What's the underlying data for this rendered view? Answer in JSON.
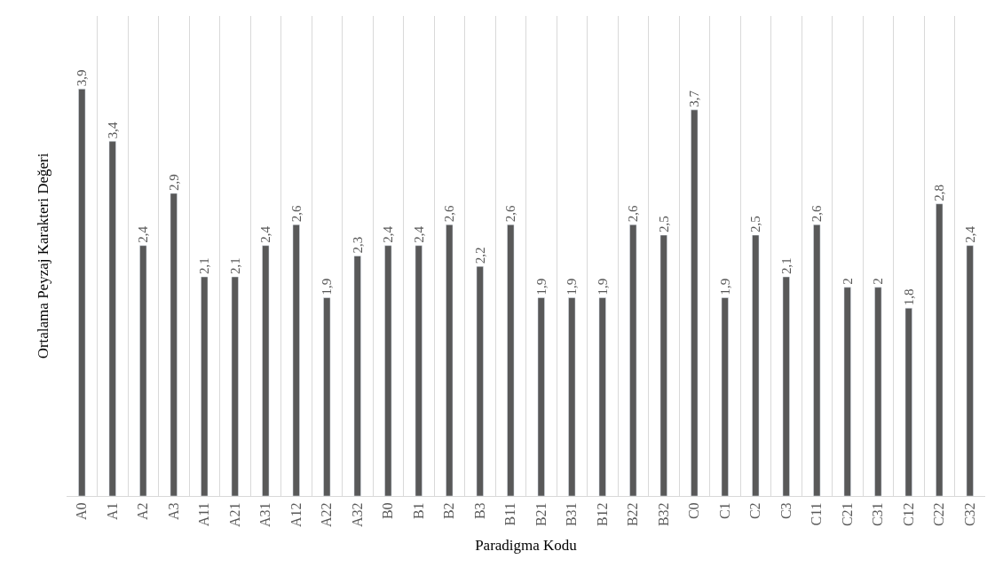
{
  "chart_data": {
    "type": "bar",
    "xlabel": "Paradigma Kodu",
    "ylabel": "Ortalama Peyzaj Karakteri Değeri",
    "categories": [
      "A0",
      "A1",
      "A2",
      "A3",
      "A11",
      "A21",
      "A31",
      "A12",
      "A22",
      "A32",
      "B0",
      "B1",
      "B2",
      "B3",
      "B11",
      "B21",
      "B31",
      "B12",
      "B22",
      "B32",
      "C0",
      "C1",
      "C2",
      "C3",
      "C11",
      "C21",
      "C31",
      "C12",
      "C22",
      "C32"
    ],
    "values": [
      3.9,
      3.4,
      2.4,
      2.9,
      2.1,
      2.1,
      2.4,
      2.6,
      1.9,
      2.3,
      2.4,
      2.4,
      2.6,
      2.2,
      2.6,
      1.9,
      1.9,
      1.9,
      2.6,
      2.5,
      3.7,
      1.9,
      2.5,
      2.1,
      2.6,
      2,
      2,
      1.8,
      2.8,
      2.4
    ],
    "value_labels": [
      "3,9",
      "3,4",
      "2,4",
      "2,9",
      "2,1",
      "2,1",
      "2,4",
      "2,6",
      "1,9",
      "2,3",
      "2,4",
      "2,4",
      "2,6",
      "2,2",
      "2,6",
      "1,9",
      "1,9",
      "1,9",
      "2,6",
      "2,5",
      "3,7",
      "1,9",
      "2,5",
      "2,1",
      "2,6",
      "2",
      "2",
      "1,8",
      "2,8",
      "2,4"
    ],
    "color": "#595959",
    "ylim": [
      0,
      4.6
    ],
    "grid": "x",
    "tick_labels": "x",
    "legend": false
  }
}
